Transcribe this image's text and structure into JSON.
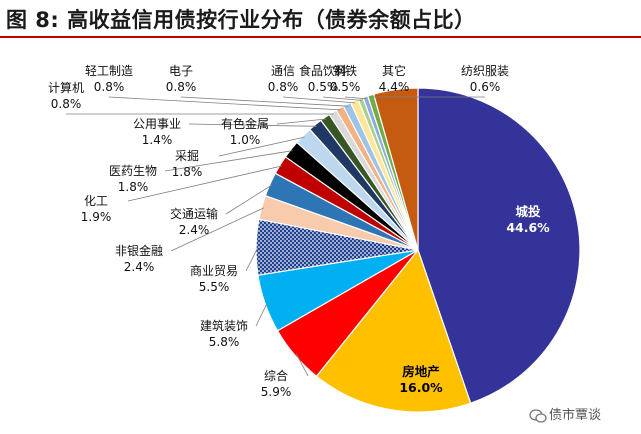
{
  "title": "图 8:  高收益信用债按行业分布（债券余额占比）",
  "watermark": "债市覃谈",
  "chart_data": {
    "type": "pie",
    "title": "图 8:  高收益信用债按行业分布（债券余额占比）",
    "slices": [
      {
        "label": "城投",
        "value": 44.6,
        "display": "44.6%",
        "color": "#333399"
      },
      {
        "label": "房地产",
        "value": 16.0,
        "display": "16.0%",
        "color": "#ffc000"
      },
      {
        "label": "综合",
        "value": 5.9,
        "display": "5.9%",
        "color": "#ff0000"
      },
      {
        "label": "建筑装饰",
        "value": 5.8,
        "display": "5.8%",
        "color": "#00b0f0"
      },
      {
        "label": "商业贸易",
        "value": 5.5,
        "display": "5.5%",
        "color": "#1f3f8f"
      },
      {
        "label": "非银金融",
        "value": 2.4,
        "display": "2.4%",
        "color": "#f8cbad"
      },
      {
        "label": "交通运输",
        "value": 2.4,
        "display": "2.4%",
        "color": "#2e75b6"
      },
      {
        "label": "化工",
        "value": 1.9,
        "display": "1.9%",
        "color": "#c00000"
      },
      {
        "label": "医药生物",
        "value": 1.8,
        "display": "1.8%",
        "color": "#000000"
      },
      {
        "label": "采掘",
        "value": 1.8,
        "display": "1.8%",
        "color": "#bdd7ee"
      },
      {
        "label": "公用事业",
        "value": 1.4,
        "display": "1.4%",
        "color": "#203864"
      },
      {
        "label": "有色金属",
        "value": 1.0,
        "display": "1.0%",
        "color": "#375623"
      },
      {
        "label": "计算机",
        "value": 0.8,
        "display": "0.8%",
        "color": "#d9d9d9"
      },
      {
        "label": "轻工制造",
        "value": 0.8,
        "display": "0.8%",
        "color": "#f4b183"
      },
      {
        "label": "电子",
        "value": 0.8,
        "display": "0.8%",
        "color": "#9dc3e6"
      },
      {
        "label": "通信",
        "value": 0.8,
        "display": "0.8%",
        "color": "#ffe699"
      },
      {
        "label": "食品饮料",
        "value": 0.5,
        "display": "0.5%",
        "color": "#a9d18e"
      },
      {
        "label": "钢铁",
        "value": 0.5,
        "display": "0.5%",
        "color": "#8faadc"
      },
      {
        "label": "纺织服装",
        "value": 0.6,
        "display": "0.6%",
        "color": "#70ad47"
      },
      {
        "label": "其它",
        "value": 4.4,
        "display": "4.4%",
        "color": "#c55a11"
      }
    ]
  }
}
